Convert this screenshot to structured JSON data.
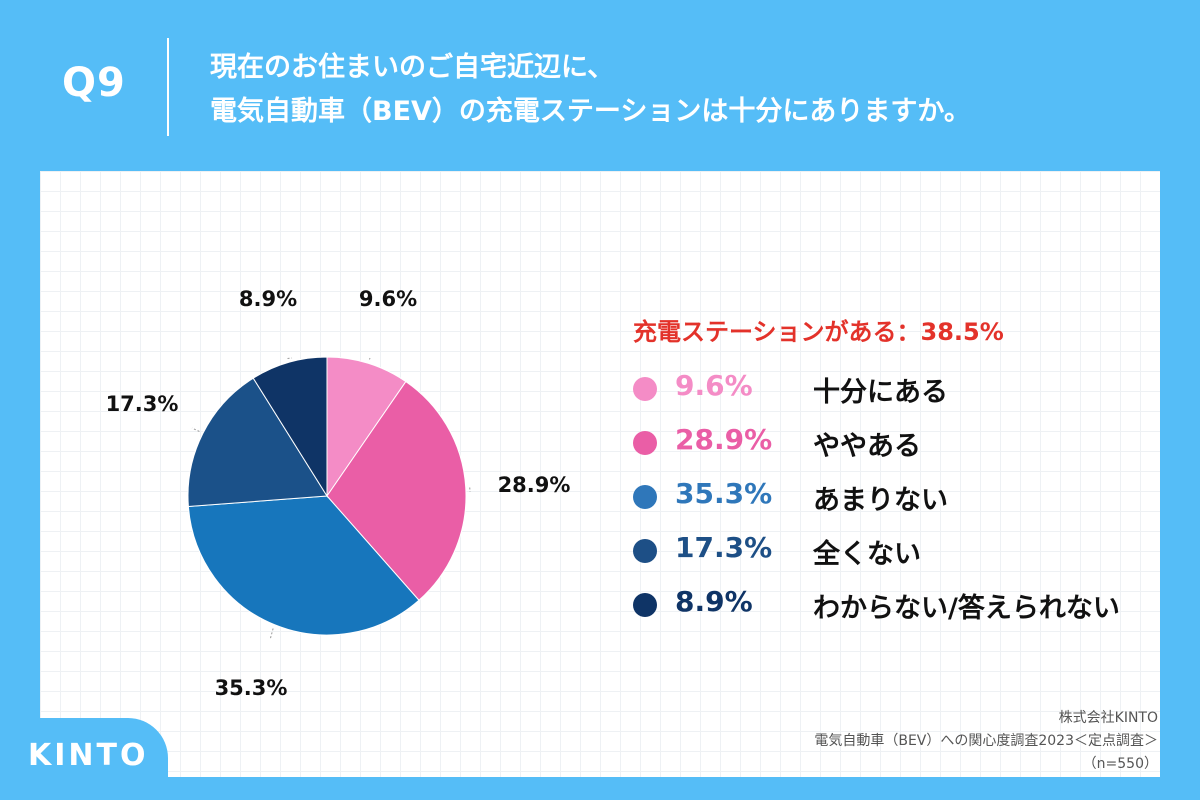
{
  "header": {
    "question_number": "Q9",
    "question_line1": "現在のお住まいのご自宅近辺に、",
    "question_line2": "電気自動車（BEV）の充電ステーションは十分にありますか。"
  },
  "summary": "充電ステーションがある：38.5%",
  "legend": [
    {
      "pct": "9.6%",
      "label": "十分にある",
      "color": "#f48cc6"
    },
    {
      "pct": "28.9%",
      "label": "ややある",
      "color": "#ea5ea6"
    },
    {
      "pct": "35.3%",
      "label": "あまりない",
      "color": "#2f77ba"
    },
    {
      "pct": "17.3%",
      "label": "全くない",
      "color": "#1d4f86"
    },
    {
      "pct": "8.9%",
      "label": "わからない/答えられない",
      "color": "#0f3466"
    }
  ],
  "source": {
    "line1": "株式会社KINTO",
    "line2": "電気自動車（BEV）への関心度調査2023＜定点調査＞",
    "line3": "（n=550）"
  },
  "logo": "KINTO",
  "chart_data": {
    "type": "pie",
    "categories": [
      "十分にある",
      "ややある",
      "あまりない",
      "全くない",
      "わからない/答えられない"
    ],
    "values": [
      9.6,
      28.9,
      35.3,
      17.3,
      8.9
    ],
    "labels": [
      "9.6%",
      "28.9%",
      "35.3%",
      "17.3%",
      "8.9%"
    ],
    "colors": [
      "#f48cc6",
      "#ea5ea6",
      "#1776bc",
      "#1b5189",
      "#0f3466"
    ],
    "start": "12 o'clock",
    "direction": "clockwise"
  }
}
